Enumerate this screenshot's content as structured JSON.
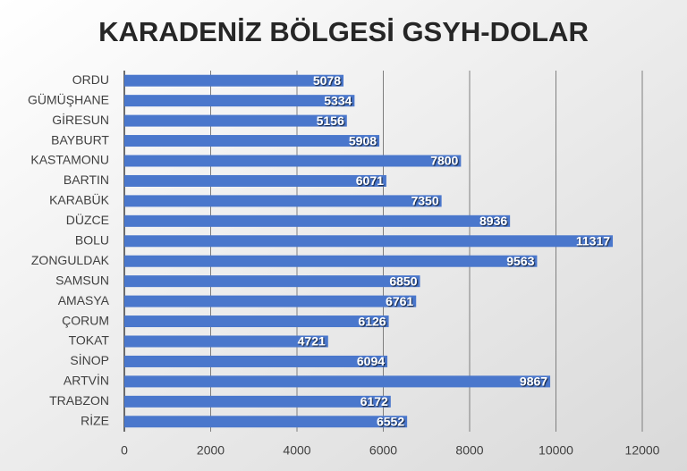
{
  "chart_data": {
    "type": "bar",
    "orientation": "horizontal",
    "title": "KARADENİZ BÖLGESİ GSYH-DOLAR",
    "categories": [
      "ORDU",
      "GÜMÜŞHANE",
      "GİRESUN",
      "BAYBURT",
      "KASTAMONU",
      "BARTIN",
      "KARABÜK",
      "DÜZCE",
      "BOLU",
      "ZONGULDAK",
      "SAMSUN",
      "AMASYA",
      "ÇORUM",
      "TOKAT",
      "SİNOP",
      "ARTVİN",
      "TRABZON",
      "RİZE"
    ],
    "values": [
      5078,
      5334,
      5156,
      5908,
      7800,
      6071,
      7350,
      8936,
      11317,
      9563,
      6850,
      6761,
      6126,
      4721,
      6094,
      9867,
      6172,
      6552
    ],
    "color": "#4a77cc",
    "xlim": [
      0,
      12000
    ],
    "xticks": [
      0,
      2000,
      4000,
      6000,
      8000,
      10000,
      12000
    ],
    "grid": true
  }
}
